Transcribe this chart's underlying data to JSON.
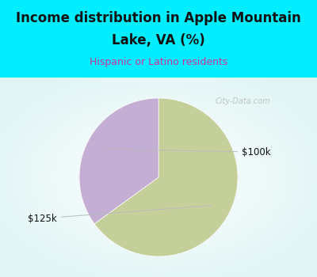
{
  "title_line1": "Income distribution in Apple Mountain",
  "title_line2": "Lake, VA (%)",
  "subtitle": "Hispanic or Latino residents",
  "slices": [
    {
      "label": "$125k",
      "value": 65,
      "color": "#c5cf9a"
    },
    {
      "label": "$100k",
      "value": 35,
      "color": "#c4aed4"
    }
  ],
  "bg_color_top": "#00eeff",
  "title_color": "#111111",
  "subtitle_color": "#cc3399",
  "label_color": "#111111",
  "label_line_color": "#bbbbbb",
  "watermark": "City-Data.com",
  "watermark_color": "#aaaaaa",
  "start_angle": 90,
  "chart_bg_color": "#f0f8f0"
}
